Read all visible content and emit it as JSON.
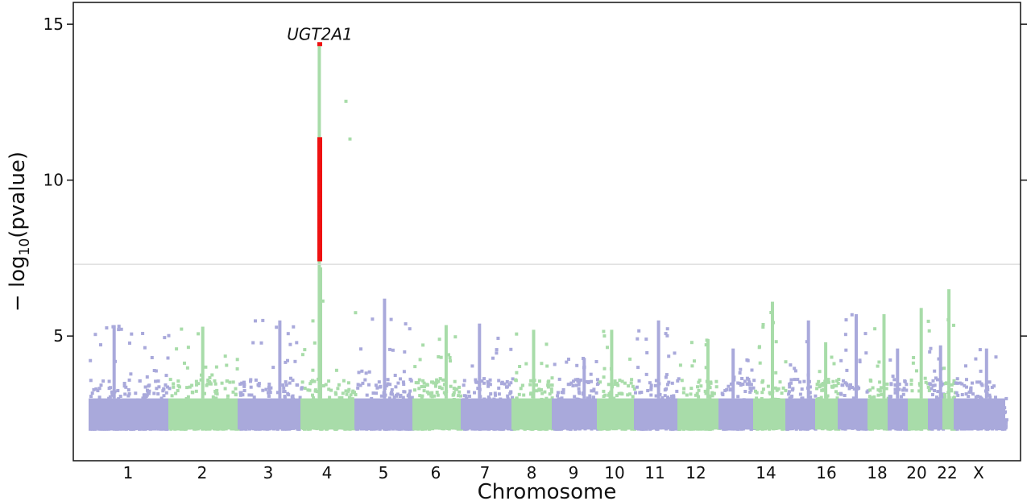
{
  "chart_data": {
    "type": "scatter",
    "subtype": "manhattan",
    "xlabel": "Chromosome",
    "ylabel_prefix": "− log",
    "ylabel_sub": "10",
    "ylabel_suffix": "(pvalue)",
    "ylim": [
      1.0,
      15.7
    ],
    "yticks": [
      5,
      10,
      15
    ],
    "significance_threshold": 7.3,
    "grid": false,
    "colors": {
      "odd": "#a9a9db",
      "even": "#a8dca9",
      "significant": "#ee1111",
      "threshold_line": "#d9d9d9"
    },
    "chromosomes": [
      {
        "label": "1",
        "shown_label": "1"
      },
      {
        "label": "2",
        "shown_label": "2"
      },
      {
        "label": "3",
        "shown_label": "3"
      },
      {
        "label": "4",
        "shown_label": "4"
      },
      {
        "label": "5",
        "shown_label": "5"
      },
      {
        "label": "6",
        "shown_label": "6"
      },
      {
        "label": "7",
        "shown_label": "7"
      },
      {
        "label": "8",
        "shown_label": "8"
      },
      {
        "label": "9",
        "shown_label": "9"
      },
      {
        "label": "10",
        "shown_label": "10"
      },
      {
        "label": "11",
        "shown_label": "11"
      },
      {
        "label": "12",
        "shown_label": "12"
      },
      {
        "label": "13",
        "shown_label": ""
      },
      {
        "label": "14",
        "shown_label": "14"
      },
      {
        "label": "15",
        "shown_label": ""
      },
      {
        "label": "16",
        "shown_label": "16"
      },
      {
        "label": "17",
        "shown_label": ""
      },
      {
        "label": "18",
        "shown_label": "18"
      },
      {
        "label": "19",
        "shown_label": ""
      },
      {
        "label": "20",
        "shown_label": "20"
      },
      {
        "label": "21",
        "shown_label": ""
      },
      {
        "label": "22",
        "shown_label": "22"
      },
      {
        "label": "X",
        "shown_label": "X"
      }
    ],
    "peak_max_by_chromosome": [
      5.35,
      5.3,
      5.5,
      14.3,
      6.2,
      5.35,
      5.4,
      5.2,
      4.3,
      5.2,
      5.5,
      4.9,
      4.6,
      6.1,
      5.5,
      4.8,
      5.7,
      5.7,
      4.6,
      5.9,
      4.7,
      6.5,
      4.6
    ],
    "significant_points": [
      {
        "chr": "4",
        "y": 14.35
      },
      {
        "chr": "4",
        "y": 11.3
      },
      {
        "chr": "4",
        "y": 11.0
      },
      {
        "chr": "4",
        "y": 10.6
      },
      {
        "chr": "4",
        "y": 10.2
      },
      {
        "chr": "4",
        "y": 9.9
      },
      {
        "chr": "4",
        "y": 9.5
      },
      {
        "chr": "4",
        "y": 9.2
      },
      {
        "chr": "4",
        "y": 8.8
      },
      {
        "chr": "4",
        "y": 8.4
      },
      {
        "chr": "4",
        "y": 8.0
      },
      {
        "chr": "4",
        "y": 7.7
      },
      {
        "chr": "4",
        "y": 7.45
      }
    ],
    "annotations": [
      {
        "text": "UGT2A1",
        "chr": "4",
        "y": 14.35
      }
    ]
  }
}
